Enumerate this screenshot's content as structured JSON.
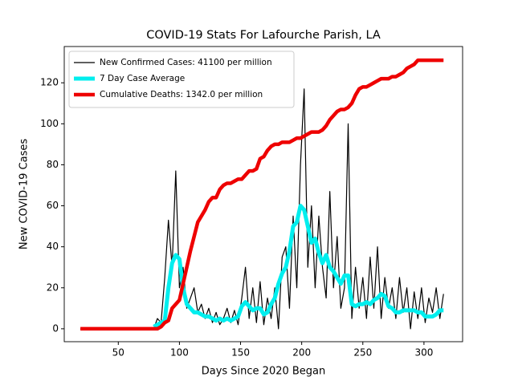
{
  "chart_data": {
    "type": "line",
    "title": "COVID-19 Stats For Lafourche Parish, LA",
    "xlabel": "Days Since 2020 Began",
    "ylabel": "New COVID-19 Cases",
    "xlim": [
      5.8,
      331.6
    ],
    "ylim": [
      -6.3,
      137.7
    ],
    "xticks": [
      50,
      100,
      150,
      200,
      250,
      300
    ],
    "yticks": [
      0,
      20,
      40,
      60,
      80,
      100,
      120
    ],
    "legend": "upper left",
    "x": [
      19,
      22,
      25,
      28,
      31,
      34,
      37,
      40,
      43,
      46,
      49,
      52,
      55,
      58,
      61,
      64,
      67,
      70,
      73,
      76,
      79,
      82,
      85,
      88,
      91,
      94,
      97,
      100,
      103,
      106,
      109,
      112,
      115,
      118,
      121,
      124,
      127,
      130,
      133,
      136,
      139,
      142,
      145,
      148,
      151,
      154,
      157,
      160,
      163,
      166,
      169,
      172,
      175,
      178,
      181,
      184,
      187,
      190,
      193,
      196,
      199,
      202,
      205,
      208,
      211,
      214,
      217,
      220,
      223,
      226,
      229,
      232,
      235,
      238,
      241,
      244,
      247,
      250,
      253,
      256,
      259,
      262,
      265,
      268,
      271,
      274,
      277,
      280,
      283,
      286,
      289,
      292,
      295,
      298,
      301,
      304,
      307,
      310,
      313,
      316
    ],
    "series": [
      {
        "name": "New Confirmed Cases: 41100 per million",
        "color": "#000000",
        "values": [
          0,
          0,
          0,
          0,
          0,
          0,
          0,
          0,
          0,
          0,
          0,
          0,
          0,
          0,
          0,
          0,
          0,
          0,
          0,
          0,
          0,
          5,
          3,
          25,
          53,
          30,
          77,
          20,
          30,
          10,
          15,
          20,
          8,
          12,
          5,
          10,
          3,
          8,
          2,
          5,
          10,
          3,
          9,
          2,
          15,
          30,
          5,
          20,
          3,
          23,
          2,
          15,
          5,
          20,
          0,
          35,
          40,
          10,
          55,
          20,
          80,
          117,
          30,
          60,
          20,
          55,
          30,
          15,
          67,
          20,
          45,
          10,
          20,
          100,
          5,
          30,
          10,
          25,
          5,
          35,
          10,
          40,
          5,
          25,
          10,
          20,
          5,
          25,
          8,
          20,
          0,
          18,
          5,
          20,
          3,
          15,
          8,
          20,
          5,
          17
        ]
      },
      {
        "name": "7 Day Case Average",
        "color": "#00eeee",
        "values": [
          null,
          null,
          null,
          null,
          null,
          null,
          null,
          null,
          null,
          null,
          null,
          null,
          null,
          null,
          null,
          null,
          null,
          null,
          null,
          null,
          1,
          2,
          3,
          4,
          20,
          32,
          36,
          34,
          20,
          12,
          10,
          8,
          8,
          7,
          6,
          6,
          5,
          4,
          5,
          4,
          5,
          4,
          5,
          6,
          11,
          13,
          11,
          9,
          10,
          10,
          7,
          8,
          12,
          15,
          22,
          27,
          30,
          38,
          50,
          52,
          60,
          58,
          50,
          42,
          44,
          37,
          32,
          36,
          30,
          28,
          25,
          22,
          26,
          26,
          12,
          11,
          12,
          12,
          13,
          12,
          14,
          15,
          17,
          16,
          11,
          10,
          8,
          8,
          9,
          9,
          9,
          9,
          8,
          8,
          6,
          6,
          6,
          7,
          9,
          9
        ]
      },
      {
        "name": "Cumulative Deaths: 1342.0 per million",
        "color": "#ee0000",
        "values": [
          0,
          0,
          0,
          0,
          0,
          0,
          0,
          0,
          0,
          0,
          0,
          0,
          0,
          0,
          0,
          0,
          0,
          0,
          0,
          0,
          0,
          0,
          1,
          3,
          4,
          10,
          12,
          14,
          22,
          30,
          38,
          45,
          52,
          55,
          58,
          62,
          64,
          64,
          68,
          70,
          71,
          71,
          72,
          73,
          73,
          75,
          77,
          77,
          78,
          83,
          84,
          87,
          89,
          90,
          90,
          91,
          91,
          91,
          92,
          93,
          93,
          94,
          95,
          96,
          96,
          96,
          97,
          99,
          102,
          104,
          106,
          107,
          107,
          108,
          110,
          114,
          117,
          118,
          118,
          119,
          120,
          121,
          122,
          122,
          122,
          123,
          123,
          124,
          125,
          127,
          128,
          129,
          131,
          131,
          131,
          131,
          131,
          131,
          131,
          131
        ]
      }
    ]
  }
}
